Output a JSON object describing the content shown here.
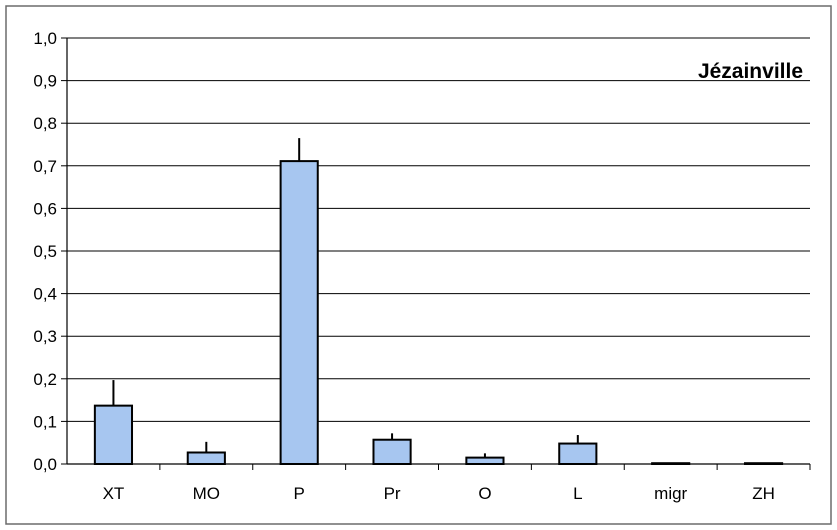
{
  "chart_data": {
    "type": "bar",
    "title": "Jézainville",
    "xlabel": "",
    "ylabel": "",
    "categories": [
      "XT",
      "MO",
      "P",
      "Pr",
      "O",
      "L",
      "migr",
      "ZH"
    ],
    "values": [
      0.137,
      0.027,
      0.711,
      0.057,
      0.015,
      0.048,
      0.001,
      0.0
    ],
    "error_upper": [
      0.197,
      0.052,
      0.765,
      0.072,
      0.025,
      0.068,
      0.0,
      0.0
    ],
    "ylim": [
      0,
      1.0
    ],
    "yticks": [
      "0,0",
      "0,1",
      "0,2",
      "0,3",
      "0,4",
      "0,5",
      "0,6",
      "0,7",
      "0,8",
      "0,9",
      "1,0"
    ],
    "ytick_values": [
      0,
      0.1,
      0.2,
      0.3,
      0.4,
      0.5,
      0.6,
      0.7,
      0.8,
      0.9,
      1.0
    ],
    "grid": "horizontal",
    "legend": "none",
    "colors": {
      "bar_fill": "#a7c6f0",
      "bar_stroke": "#000000",
      "grid": "#000000",
      "frame": "#6b6b6b"
    }
  }
}
